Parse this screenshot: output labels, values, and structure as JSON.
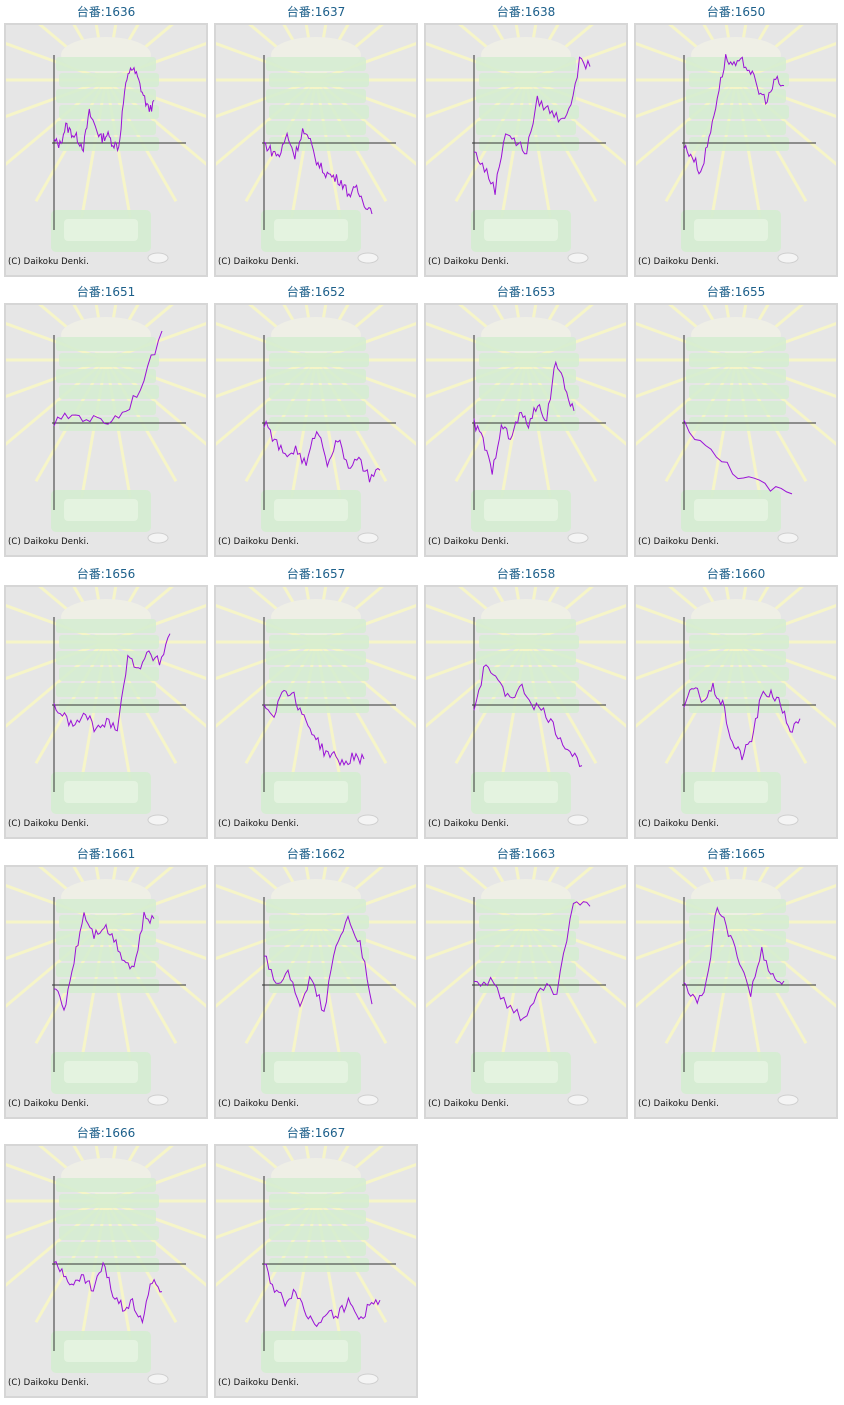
{
  "copyright": "(C) Daikoku Denki.",
  "colors": {
    "line": "#9a12d6",
    "title": "#1c5f8a",
    "axis": "#333333",
    "frame_bg": "#e6e6e6"
  },
  "machines": [
    {
      "label": "台番:1636",
      "trend": [
        0.02,
        -0.02,
        0.2,
        0.12,
        0.05,
        -0.05,
        0.35,
        0.2,
        0.05,
        0.1,
        0.0,
        -0.05,
        0.6,
        0.9,
        0.8,
        0.6,
        0.4,
        0.45
      ]
    },
    {
      "label": "台番:1637",
      "trend": [
        0.0,
        -0.1,
        -0.15,
        0.1,
        -0.15,
        0.15,
        0.0,
        -0.25,
        -0.35,
        -0.4,
        -0.45,
        -0.6,
        -0.55,
        -0.7,
        -0.8
      ]
    },
    {
      "label": "台番:1638",
      "trend": [
        -0.1,
        -0.3,
        -0.55,
        0.15,
        0.0,
        -0.1,
        0.5,
        0.4,
        0.3,
        0.35,
        0.95,
        0.9
      ]
    },
    {
      "label": "台番:1650",
      "trend": [
        -0.05,
        -0.15,
        -0.35,
        0.05,
        0.55,
        1.0,
        0.9,
        0.95,
        0.85,
        0.6,
        0.5,
        0.75,
        0.65
      ]
    },
    {
      "label": "台番:1651",
      "trend": [
        0.0,
        0.1,
        0.05,
        0.02,
        0.15,
        0.5,
        1.1
      ]
    },
    {
      "label": "台番:1652",
      "trend": [
        0.0,
        -0.2,
        -0.4,
        -0.3,
        -0.5,
        -0.05,
        -0.45,
        -0.2,
        -0.5,
        -0.45,
        -0.65,
        -0.55
      ]
    },
    {
      "label": "台番:1653",
      "trend": [
        0.0,
        -0.2,
        -0.6,
        0.0,
        -0.2,
        0.1,
        0.0,
        0.2,
        0.05,
        0.75,
        0.4,
        0.15
      ]
    },
    {
      "label": "台番:1655",
      "trend": [
        0.0,
        -0.35,
        -0.6,
        -0.75,
        -0.85
      ]
    },
    {
      "label": "台番:1656",
      "trend": [
        0.0,
        -0.15,
        -0.25,
        -0.1,
        -0.3,
        -0.2,
        -0.25,
        0.55,
        0.45,
        0.6,
        0.5,
        0.85
      ]
    },
    {
      "label": "台番:1657",
      "trend": [
        0.0,
        -0.1,
        0.2,
        0.1,
        -0.15,
        -0.35,
        -0.55,
        -0.6,
        -0.7,
        -0.6,
        -0.65
      ]
    },
    {
      "label": "台番:1658",
      "trend": [
        -0.05,
        0.5,
        0.25,
        0.1,
        0.2,
        0.0,
        -0.1,
        -0.35,
        -0.55,
        -0.7
      ]
    },
    {
      "label": "台番:1660",
      "trend": [
        0.0,
        0.2,
        0.05,
        0.2,
        0.0,
        -0.45,
        -0.6,
        -0.4,
        0.1,
        0.15,
        0.0,
        -0.3,
        -0.2
      ]
    },
    {
      "label": "台番:1661",
      "trend": [
        0.0,
        -0.3,
        0.3,
        0.85,
        0.6,
        0.7,
        0.55,
        0.3,
        0.2,
        0.8,
        0.75
      ]
    },
    {
      "label": "台番:1662",
      "trend": [
        0.4,
        0.0,
        0.15,
        -0.2,
        0.1,
        -0.35,
        0.5,
        0.8,
        0.5,
        -0.2
      ]
    },
    {
      "label": "台番:1663",
      "trend": [
        0.0,
        0.05,
        -0.25,
        -0.4,
        0.0,
        -0.1,
        1.0,
        0.9
      ]
    },
    {
      "label": "台番:1665",
      "trend": [
        0.0,
        -0.2,
        0.0,
        0.95,
        0.6,
        0.3,
        -0.1,
        0.4,
        0.1,
        0.0
      ]
    },
    {
      "label": "台番:1666",
      "trend": [
        0.0,
        -0.1,
        -0.25,
        -0.15,
        -0.3,
        0.0,
        -0.35,
        -0.5,
        -0.45,
        -0.65,
        -0.2,
        -0.3
      ]
    },
    {
      "label": "台番:1667",
      "trend": [
        0.0,
        -0.3,
        -0.45,
        -0.3,
        -0.6,
        -0.7,
        -0.55,
        -0.6,
        -0.45,
        -0.65,
        -0.5,
        -0.4
      ]
    }
  ]
}
